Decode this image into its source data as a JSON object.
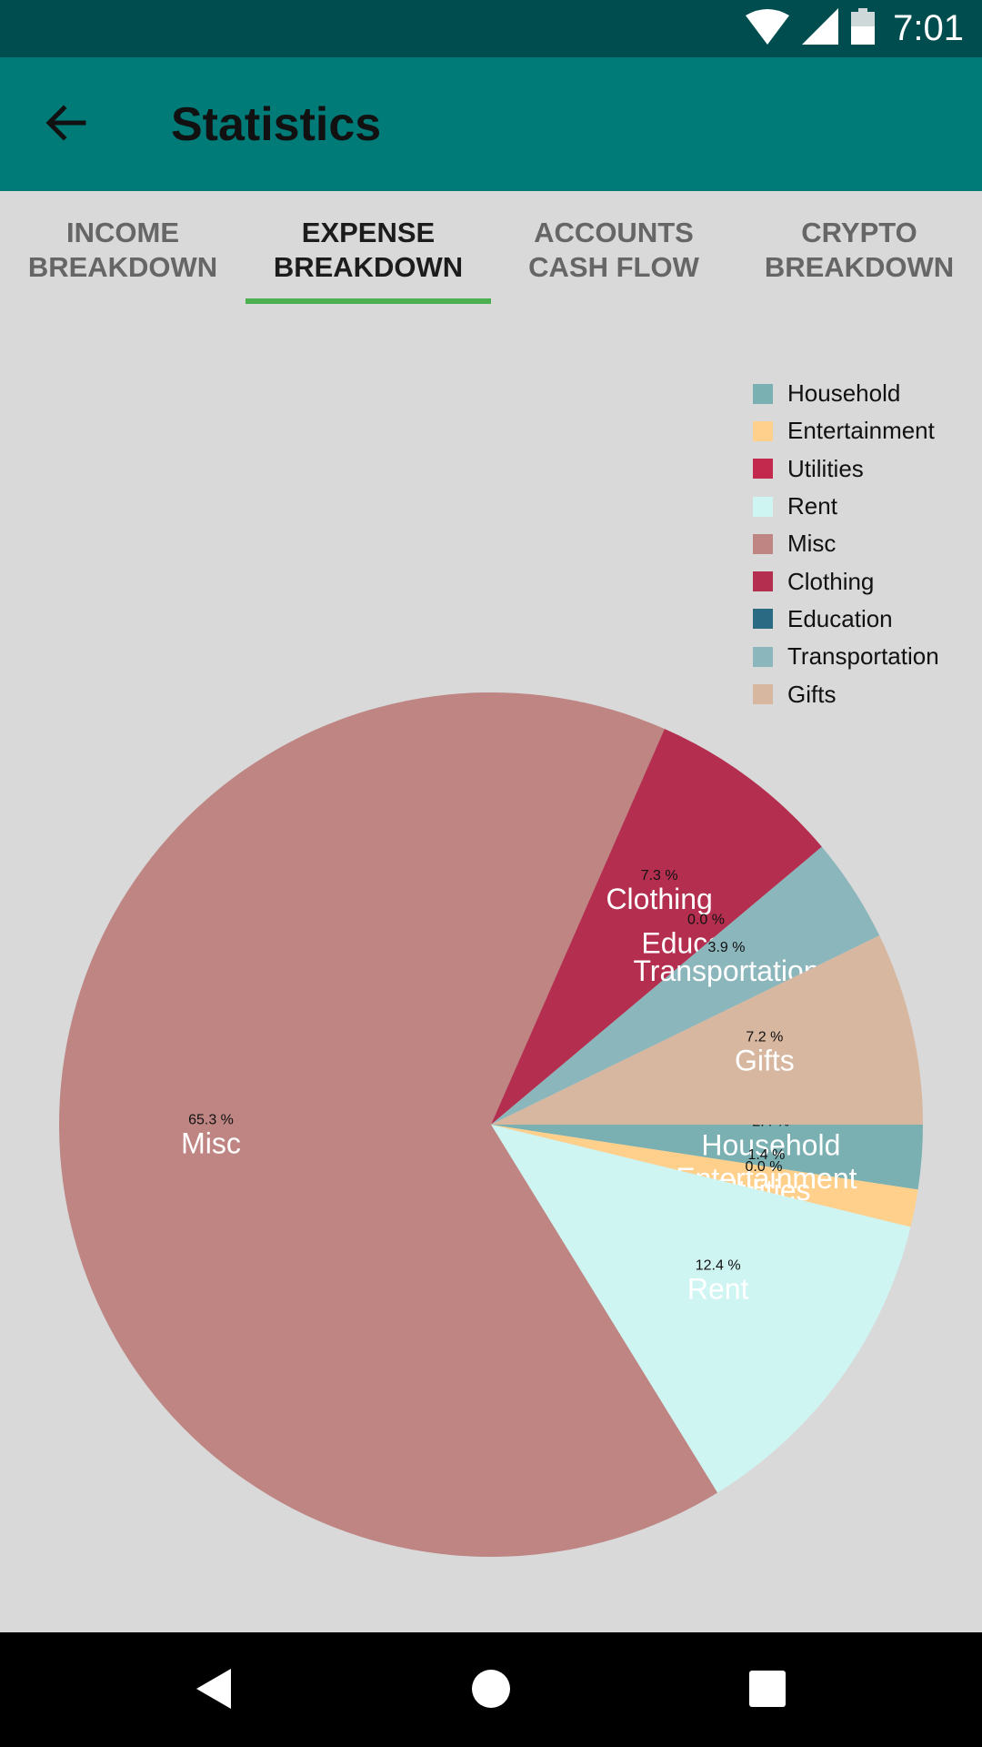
{
  "status_bar": {
    "time": "7:01"
  },
  "app_bar": {
    "title": "Statistics"
  },
  "tabs": [
    {
      "line1": "INCOME",
      "line2": "BREAKDOWN",
      "active": false
    },
    {
      "line1": "EXPENSE",
      "line2": "BREAKDOWN",
      "active": true
    },
    {
      "line1": "ACCOUNTS",
      "line2": "CASH FLOW",
      "active": false
    },
    {
      "line1": "CRYPTO",
      "line2": "BREAKDOWN",
      "active": false
    }
  ],
  "colors": {
    "status_bar": "#004d4f",
    "app_bar": "#007b78",
    "tab_indicator": "#4caf50",
    "background": "#d9d9d9"
  },
  "chart_data": {
    "type": "pie",
    "legend_position": "top-right",
    "slices": [
      {
        "name": "Household",
        "value": 2.4,
        "label": "2.4 %",
        "color": "#7ab0b2"
      },
      {
        "name": "Entertainment",
        "value": 1.4,
        "label": "1.4 %",
        "color": "#ffd08c"
      },
      {
        "name": "Utilities",
        "value": 0.0,
        "label": "0.0 %",
        "color": "#c2294d"
      },
      {
        "name": "Rent",
        "value": 12.4,
        "label": "12.4 %",
        "color": "#cff5f3"
      },
      {
        "name": "Misc",
        "value": 65.3,
        "label": "65.3 %",
        "color": "#be8583"
      },
      {
        "name": "Clothing",
        "value": 7.3,
        "label": "7.3 %",
        "color": "#b42f4f"
      },
      {
        "name": "Education",
        "value": 0.0,
        "label": "0.0 %",
        "color": "#2a6a82"
      },
      {
        "name": "Transportation",
        "value": 3.9,
        "label": "3.9 %",
        "color": "#8bb6bb"
      },
      {
        "name": "Gifts",
        "value": 7.2,
        "label": "7.2 %",
        "color": "#d7b7a0"
      }
    ]
  }
}
